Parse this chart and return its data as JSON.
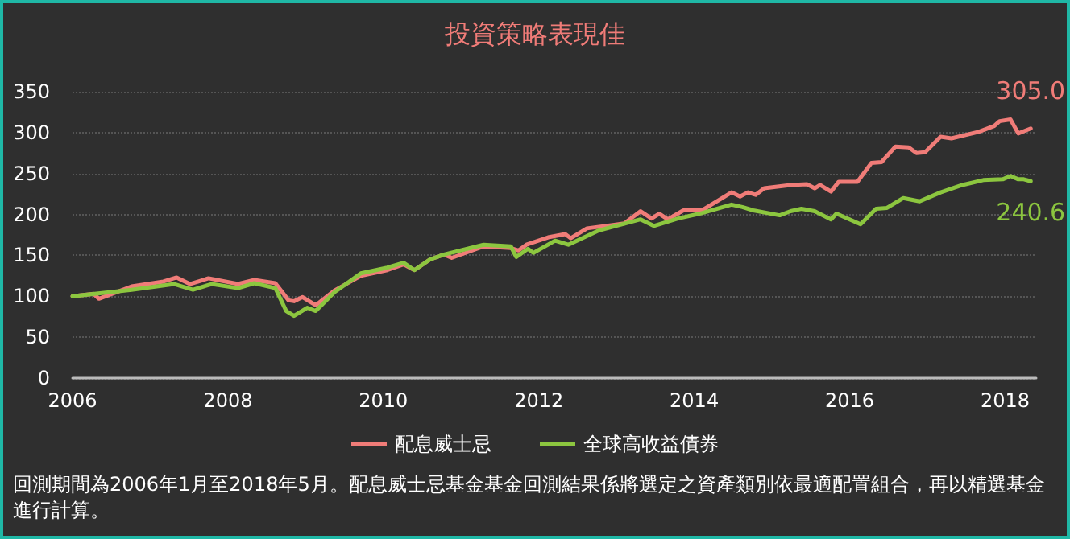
{
  "chart_data": {
    "type": "line",
    "title": "投資策略表現佳",
    "xlim": [
      2006,
      2018.4
    ],
    "xticks": [
      2006,
      2008,
      2010,
      2012,
      2014,
      2016,
      2018
    ],
    "ylim": [
      0,
      350
    ],
    "yticks": [
      0,
      50,
      100,
      150,
      200,
      250,
      300,
      350
    ],
    "grid": "y",
    "legend": "bottom",
    "marker": "none",
    "line_style": "solid",
    "annotations": [
      "回測期間為2006年1月至2018年5月。配息威士忌基金基金回測結果係將選定之資產類別依最適配置組合，再以精選基金進行計算。"
    ],
    "series": [
      {
        "name": "配息威士忌",
        "color": "#f07c78",
        "x": [
          2006,
          2006.27,
          2006.34,
          2006.76,
          2007.17,
          2007.34,
          2007.51,
          2007.75,
          2008.13,
          2008.34,
          2008.61,
          2008.78,
          2008.85,
          2008.96,
          2009.13,
          2009.37,
          2009.71,
          2010.05,
          2010.26,
          2010.4,
          2010.6,
          2010.78,
          2010.88,
          2011.29,
          2011.64,
          2011.74,
          2011.84,
          2012.12,
          2012.34,
          2012.41,
          2012.62,
          2013.1,
          2013.31,
          2013.45,
          2013.55,
          2013.66,
          2013.86,
          2014.1,
          2014.48,
          2014.59,
          2014.69,
          2014.79,
          2014.9,
          2015.24,
          2015.45,
          2015.55,
          2015.62,
          2015.76,
          2015.86,
          2016.1,
          2016.28,
          2016.41,
          2016.59,
          2016.76,
          2016.86,
          2016.97,
          2017.17,
          2017.31,
          2017.66,
          2017.86,
          2017.93,
          2018.07,
          2018.17,
          2018.33
        ],
        "values": [
          100,
          103,
          97,
          112,
          118,
          123,
          115,
          122,
          115,
          120,
          116,
          95,
          94,
          99,
          89,
          107,
          125,
          132,
          139,
          132,
          145,
          151,
          147,
          161,
          159,
          156,
          163,
          172,
          176,
          171,
          183,
          189,
          204,
          195,
          201,
          194,
          205,
          205,
          227,
          222,
          227,
          224,
          232,
          236,
          237,
          232,
          236,
          228,
          240,
          240,
          263,
          264,
          283,
          282,
          275,
          276,
          295,
          293,
          301,
          308,
          314,
          316,
          299,
          305.0
        ],
        "value_labels": [
          null,
          null,
          null,
          null,
          null,
          null,
          null,
          null,
          null,
          null,
          null,
          null,
          null,
          null,
          null,
          null,
          null,
          null,
          null,
          null,
          null,
          null,
          null,
          null,
          null,
          null,
          null,
          null,
          null,
          null,
          null,
          null,
          null,
          null,
          null,
          null,
          null,
          null,
          null,
          null,
          null,
          null,
          null,
          null,
          null,
          null,
          null,
          null,
          null,
          null,
          null,
          null,
          null,
          null,
          null,
          null,
          null,
          null,
          null,
          null,
          null,
          null,
          null,
          "305.0"
        ]
      },
      {
        "name": "全球高收益債券",
        "color": "#8cc63f",
        "x": [
          2006,
          2006.76,
          2007.31,
          2007.55,
          2007.79,
          2008.13,
          2008.34,
          2008.61,
          2008.75,
          2008.85,
          2009.02,
          2009.13,
          2009.37,
          2009.71,
          2010.05,
          2010.26,
          2010.4,
          2010.6,
          2010.78,
          2011.29,
          2011.64,
          2011.71,
          2011.86,
          2011.93,
          2012.21,
          2012.38,
          2012.76,
          2013.03,
          2013.31,
          2013.48,
          2013.79,
          2014.07,
          2014.48,
          2014.62,
          2014.76,
          2015.1,
          2015.24,
          2015.38,
          2015.55,
          2015.76,
          2015.83,
          2016.14,
          2016.34,
          2016.48,
          2016.69,
          2016.9,
          2017.17,
          2017.45,
          2017.72,
          2017.97,
          2018.07,
          2018.17,
          2018.24,
          2018.33
        ],
        "values": [
          100,
          108,
          115,
          108,
          115,
          110,
          116,
          110,
          82,
          76,
          86,
          82,
          105,
          128,
          135,
          141,
          132,
          145,
          151,
          163,
          161,
          148,
          158,
          153,
          168,
          163,
          180,
          187,
          194,
          186,
          195,
          201,
          212,
          209,
          205,
          199,
          204,
          207,
          204,
          194,
          201,
          188,
          207,
          208,
          220,
          216,
          227,
          236,
          242,
          243,
          247,
          243,
          243,
          240.6
        ],
        "value_labels": [
          null,
          null,
          null,
          null,
          null,
          null,
          null,
          null,
          null,
          null,
          null,
          null,
          null,
          null,
          null,
          null,
          null,
          null,
          null,
          null,
          null,
          null,
          null,
          null,
          null,
          null,
          null,
          null,
          null,
          null,
          null,
          null,
          null,
          null,
          null,
          null,
          null,
          null,
          null,
          null,
          null,
          null,
          null,
          null,
          null,
          null,
          null,
          null,
          null,
          null,
          null,
          null,
          null,
          "240.6"
        ]
      }
    ]
  }
}
